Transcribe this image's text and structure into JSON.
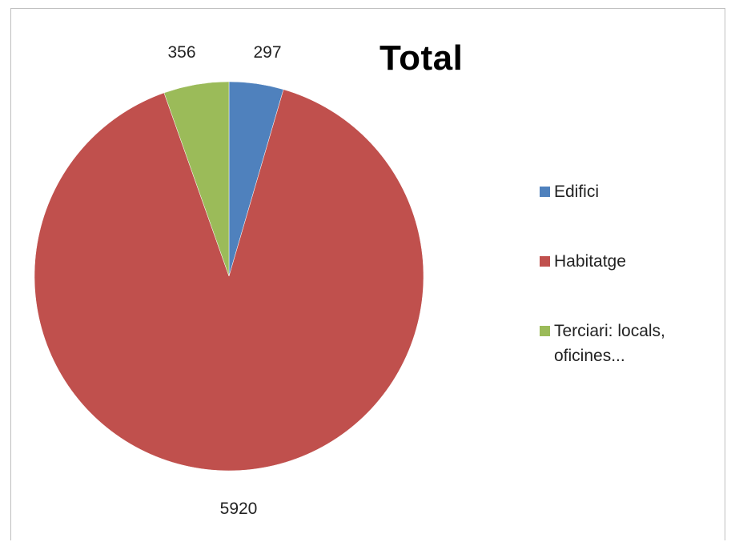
{
  "chart_data": {
    "type": "pie",
    "title": "Total",
    "categories": [
      "Edifici",
      "Habitatge",
      "Terciari: locals, oficines..."
    ],
    "values": [
      297,
      5920,
      356
    ],
    "colors": [
      "#4f81bd",
      "#c0504d",
      "#9bbb59"
    ],
    "data_labels": [
      "297",
      "5920",
      "356"
    ],
    "start_angle_deg": 0,
    "direction": "clockwise",
    "legend_position": "right"
  }
}
